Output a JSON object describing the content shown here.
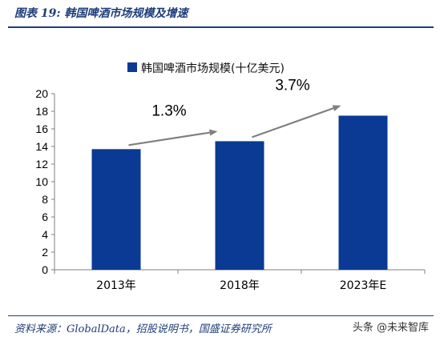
{
  "figure": {
    "title": "图表 19:  韩国啤酒市场规模及增速",
    "source": "资料来源：GlobalData，招股说明书，国盛证券研究所",
    "watermark": "头条 @未来智库"
  },
  "chart_data": {
    "type": "bar",
    "title": "",
    "xlabel": "",
    "ylabel": "",
    "categories": [
      "2013年",
      "2018年",
      "2023年E"
    ],
    "series": [
      {
        "name": "韩国啤酒市场规模(十亿美元)",
        "values": [
          13.7,
          14.6,
          17.5
        ]
      }
    ],
    "ylim": [
      0,
      20
    ],
    "yticks": [
      0,
      2,
      4,
      6,
      8,
      10,
      12,
      14,
      16,
      18,
      20
    ],
    "legend_position": "top",
    "grid": false,
    "annotations": [
      {
        "text": "1.3%",
        "from": "2013年",
        "to": "2018年"
      },
      {
        "text": "3.7%",
        "from": "2018年",
        "to": "2023年E"
      }
    ],
    "colors": {
      "bar": "#0a3a94",
      "arrow": "#808080",
      "axis": "#7f7f7f"
    }
  }
}
